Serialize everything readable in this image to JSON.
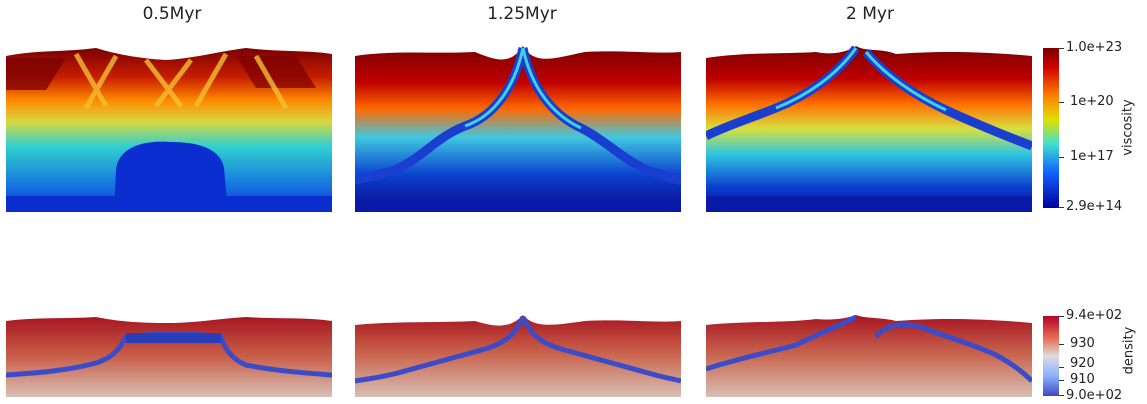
{
  "columns": [
    {
      "title": "0.5Myr"
    },
    {
      "title": "1.25Myr"
    },
    {
      "title": "2 Myr"
    }
  ],
  "colorbars": {
    "viscosity": {
      "title": "viscosity",
      "ticks": [
        "1.0e+23",
        "1e+20",
        "1e+17",
        "2.9e+14"
      ],
      "colormap": "jet",
      "range": [
        "2.9e+14",
        "1.0e+23"
      ]
    },
    "density": {
      "title": "density",
      "ticks": [
        "9.4e+02",
        "930",
        "920",
        "910",
        "9.0e+02"
      ],
      "colormap": "coolwarm",
      "range": [
        "9.0e+02",
        "9.4e+02"
      ]
    }
  },
  "colors": {
    "jet_red": "#7a0000",
    "jet_blue": "#0a0a8c",
    "density_red": "#b01e24",
    "density_light": "#d9c3b6",
    "density_blue": "#3c4fc4"
  }
}
